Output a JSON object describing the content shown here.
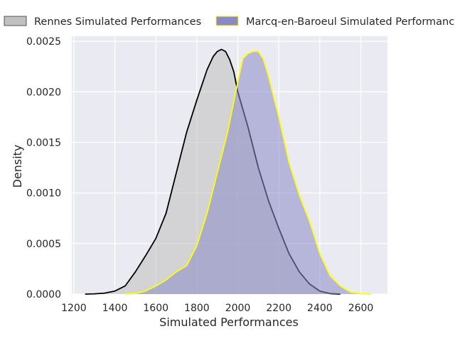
{
  "chart_data": {
    "type": "area",
    "xlabel": "Simulated Performances",
    "ylabel": "Density",
    "xlim": [
      1190,
      2730
    ],
    "ylim": [
      0,
      0.00255
    ],
    "x_ticks": [
      1200,
      1400,
      1600,
      1800,
      2000,
      2200,
      2400,
      2600
    ],
    "y_ticks": [
      0.0,
      0.0005,
      0.001,
      0.0015,
      0.002,
      0.0025
    ],
    "y_tick_labels": [
      "0.0000",
      "0.0005",
      "0.0010",
      "0.0015",
      "0.0020",
      "0.0025"
    ],
    "grid": true,
    "legend_position": "top",
    "series": [
      {
        "name": "Rennes Simulated Performances",
        "fill": "#c0c0c0",
        "line": "#000000",
        "x": [
          1255,
          1300,
          1350,
          1400,
          1450,
          1500,
          1550,
          1600,
          1650,
          1700,
          1750,
          1800,
          1850,
          1880,
          1900,
          1920,
          1940,
          1960,
          1980,
          2000,
          2050,
          2100,
          2150,
          2200,
          2250,
          2300,
          2350,
          2400,
          2450,
          2500
        ],
        "y": [
          0.0,
          3e-06,
          1e-05,
          3e-05,
          8e-05,
          0.00022,
          0.00038,
          0.00055,
          0.0008,
          0.0012,
          0.0016,
          0.00192,
          0.00222,
          0.00235,
          0.0024,
          0.00242,
          0.0024,
          0.00232,
          0.0022,
          0.002,
          0.00165,
          0.00125,
          0.00092,
          0.00065,
          0.0004,
          0.00022,
          0.0001,
          3e-05,
          5e-06,
          0.0
        ]
      },
      {
        "name": "Marcq-en-Baroeul Simulated Performances",
        "fill": "#8a8ac8",
        "line": "#ffff00",
        "x": [
          1450,
          1500,
          1550,
          1600,
          1650,
          1700,
          1750,
          1800,
          1850,
          1900,
          1950,
          2000,
          2025,
          2050,
          2075,
          2100,
          2125,
          2150,
          2200,
          2250,
          2300,
          2350,
          2400,
          2450,
          2500,
          2550,
          2600,
          2650
        ],
        "y": [
          0.0,
          5e-06,
          3e-05,
          8e-05,
          0.00014,
          0.00022,
          0.00028,
          0.00048,
          0.0008,
          0.0012,
          0.0016,
          0.0021,
          0.00233,
          0.00238,
          0.0024,
          0.0024,
          0.00232,
          0.00215,
          0.00175,
          0.0013,
          0.00098,
          0.00072,
          0.0004,
          0.00018,
          8e-05,
          2e-05,
          5e-06,
          0.0
        ]
      }
    ]
  }
}
